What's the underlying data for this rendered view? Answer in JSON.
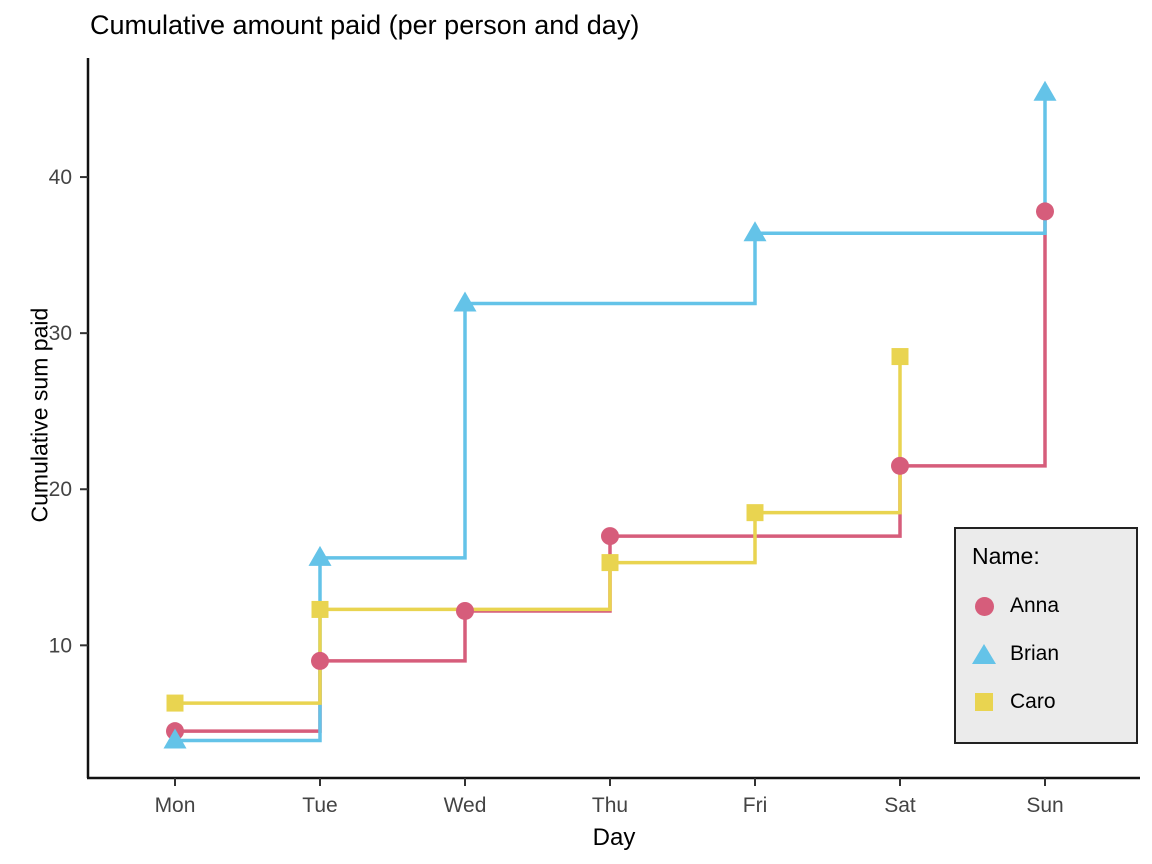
{
  "chart_data": {
    "type": "line",
    "subtype": "step-hv",
    "title": "Cumulative amount paid (per person and day)",
    "xlabel": "Day",
    "ylabel": "Cumulative sum paid",
    "categories": [
      "Mon",
      "Tue",
      "Wed",
      "Thu",
      "Fri",
      "Sat",
      "Sun"
    ],
    "y_ticks": [
      10,
      20,
      30,
      40
    ],
    "ylim": [
      1.5,
      47.5
    ],
    "grid": "off",
    "axis_color": "#111111",
    "axis_text_color": "#444444",
    "legend": {
      "title": "Name:",
      "position": "inside-bottom-right",
      "background": "#ebebeb",
      "border_color": "#222222"
    },
    "series": [
      {
        "name": "Anna",
        "color": "#d65d7b",
        "marker": "circle",
        "points": [
          {
            "x": "Mon",
            "y": 4.5
          },
          {
            "x": "Tue",
            "y": 9.0
          },
          {
            "x": "Wed",
            "y": 12.2
          },
          {
            "x": "Thu",
            "y": 17.0
          },
          {
            "x": "Sat",
            "y": 21.5
          },
          {
            "x": "Sun",
            "y": 37.8
          }
        ]
      },
      {
        "name": "Brian",
        "color": "#64c3e8",
        "marker": "triangle",
        "points": [
          {
            "x": "Mon",
            "y": 3.9
          },
          {
            "x": "Tue",
            "y": 15.6
          },
          {
            "x": "Wed",
            "y": 31.9
          },
          {
            "x": "Fri",
            "y": 36.4
          },
          {
            "x": "Sun",
            "y": 45.4
          }
        ]
      },
      {
        "name": "Caro",
        "color": "#e9d450",
        "marker": "square",
        "points": [
          {
            "x": "Mon",
            "y": 6.3
          },
          {
            "x": "Tue",
            "y": 12.3
          },
          {
            "x": "Thu",
            "y": 15.3
          },
          {
            "x": "Fri",
            "y": 18.5
          },
          {
            "x": "Sat",
            "y": 28.5
          }
        ]
      }
    ]
  }
}
